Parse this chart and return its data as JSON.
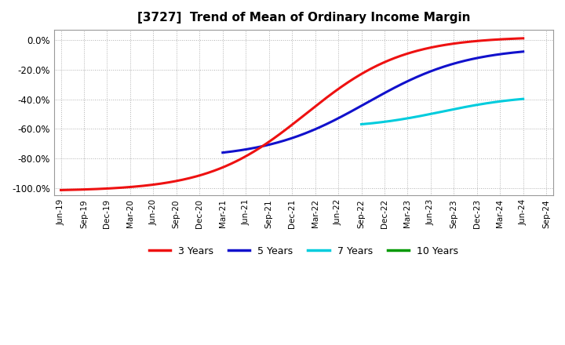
{
  "title": "[3727]  Trend of Mean of Ordinary Income Margin",
  "title_fontsize": 11,
  "ylim": [
    -1.05,
    0.07
  ],
  "yticks": [
    0.0,
    -0.2,
    -0.4,
    -0.6,
    -0.8,
    -1.0
  ],
  "background_color": "#ffffff",
  "plot_bg_color": "#ffffff",
  "grid_color": "#b0b0b0",
  "xtick_labels": [
    "Jun-19",
    "Sep-19",
    "Dec-19",
    "Mar-20",
    "Jun-20",
    "Sep-20",
    "Dec-20",
    "Mar-21",
    "Jun-21",
    "Sep-21",
    "Dec-21",
    "Mar-22",
    "Jun-22",
    "Sep-22",
    "Dec-22",
    "Mar-23",
    "Jun-23",
    "Sep-23",
    "Dec-23",
    "Mar-24",
    "Jun-24",
    "Sep-24"
  ],
  "legend_entries": [
    "3 Years",
    "5 Years",
    "7 Years",
    "10 Years"
  ],
  "legend_colors": [
    "#ee1111",
    "#1111cc",
    "#00ccdd",
    "#009900"
  ],
  "line_width": 2.2
}
